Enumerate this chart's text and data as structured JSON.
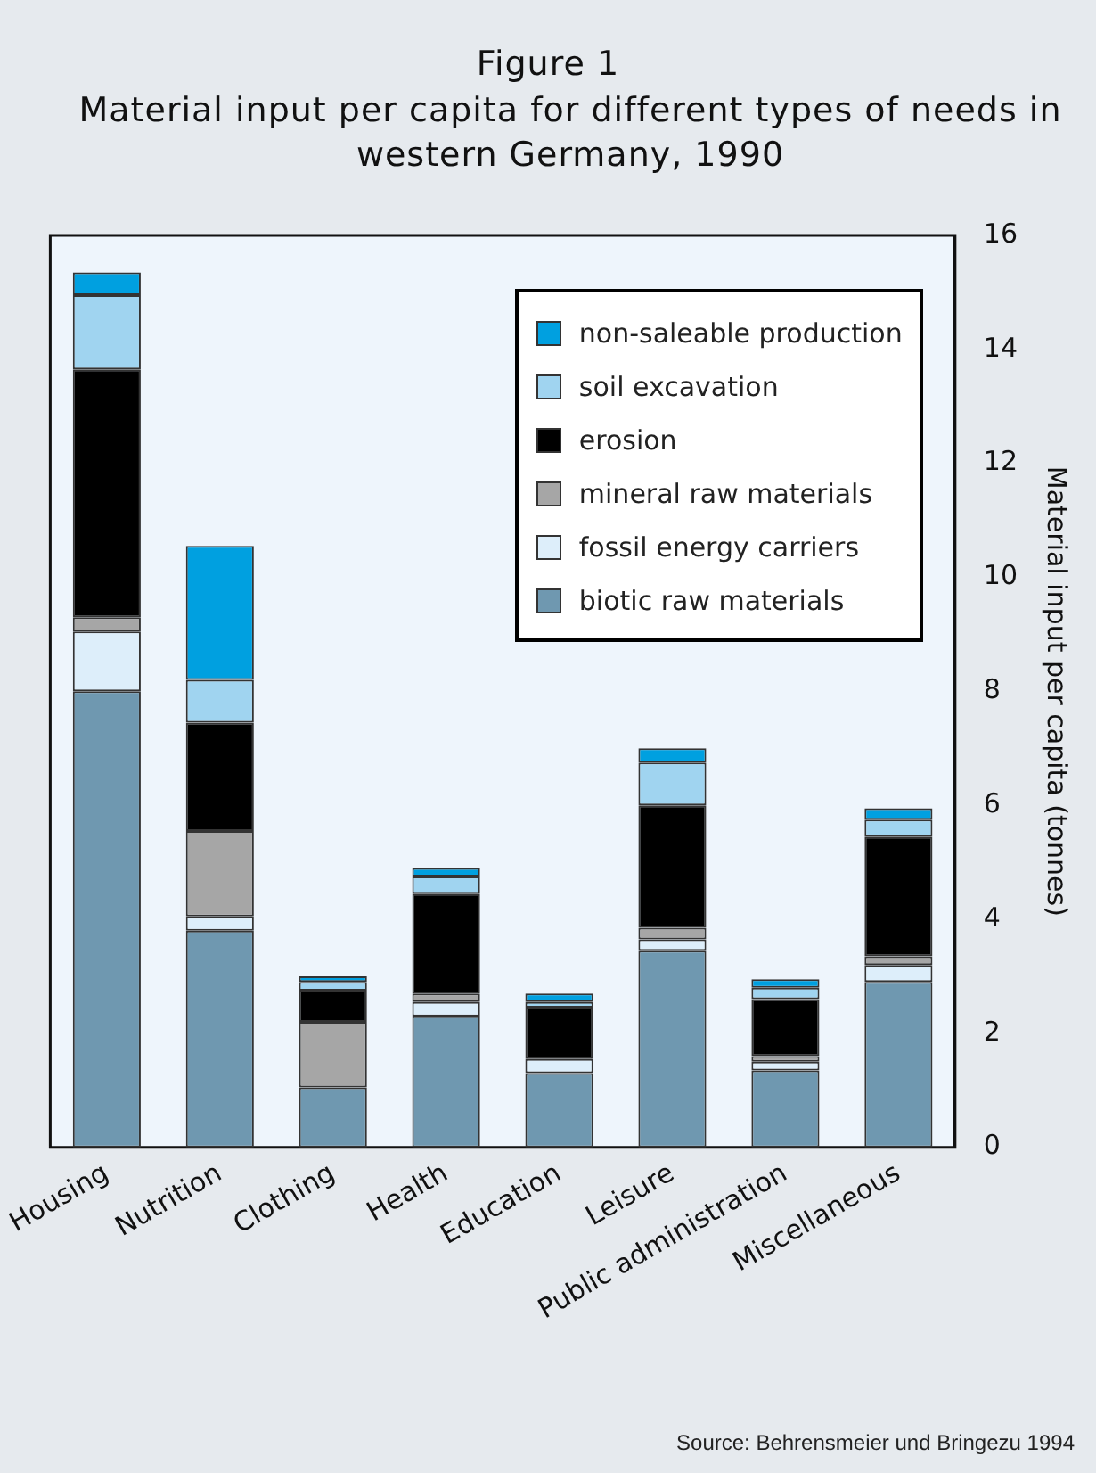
{
  "chart_data": {
    "type": "bar",
    "title": "Figure 1",
    "subtitle": "Material input per capita for different types of needs in western Germany, 1990",
    "ylabel": "Material input per capita (tonnes)",
    "annotations": [
      "Source: Behrensmeier und Bringezu 1994"
    ],
    "categories": [
      "Housing",
      "Nutrition",
      "Clothing",
      "Health",
      "Education",
      "Leisure",
      "Public administration",
      "Miscellaneous"
    ],
    "stacked": true,
    "ylim": [
      0,
      16
    ],
    "yticks": [
      0,
      2,
      4,
      6,
      8,
      10,
      12,
      14,
      16
    ],
    "grid": false,
    "legend": "top right",
    "series": [
      {
        "name": "biotic raw materials",
        "color": "#6f98b0",
        "values": [
          8.0,
          3.8,
          1.05,
          2.3,
          1.3,
          3.45,
          1.35,
          2.9
        ]
      },
      {
        "name": "fossil energy carriers",
        "color": "#ddeefa",
        "values": [
          1.05,
          0.25,
          0,
          0.25,
          0.25,
          0.2,
          0.15,
          0.3
        ]
      },
      {
        "name": "mineral raw materials",
        "color": "#a6a6a6",
        "values": [
          0.25,
          1.5,
          1.15,
          0.15,
          0,
          0.2,
          0.1,
          0.15
        ]
      },
      {
        "name": "erosion",
        "color": "#000000",
        "values": [
          4.35,
          1.9,
          0.55,
          1.75,
          0.9,
          2.15,
          1.0,
          2.1
        ]
      },
      {
        "name": "soil excavation",
        "color": "#a0d4f0",
        "values": [
          1.3,
          0.75,
          0.15,
          0.3,
          0.1,
          0.75,
          0.2,
          0.3
        ]
      },
      {
        "name": "non-saleable production",
        "color": "#00a0e0",
        "values": [
          0.4,
          2.35,
          0.1,
          0.15,
          0.15,
          0.25,
          0.15,
          0.2
        ]
      }
    ]
  }
}
